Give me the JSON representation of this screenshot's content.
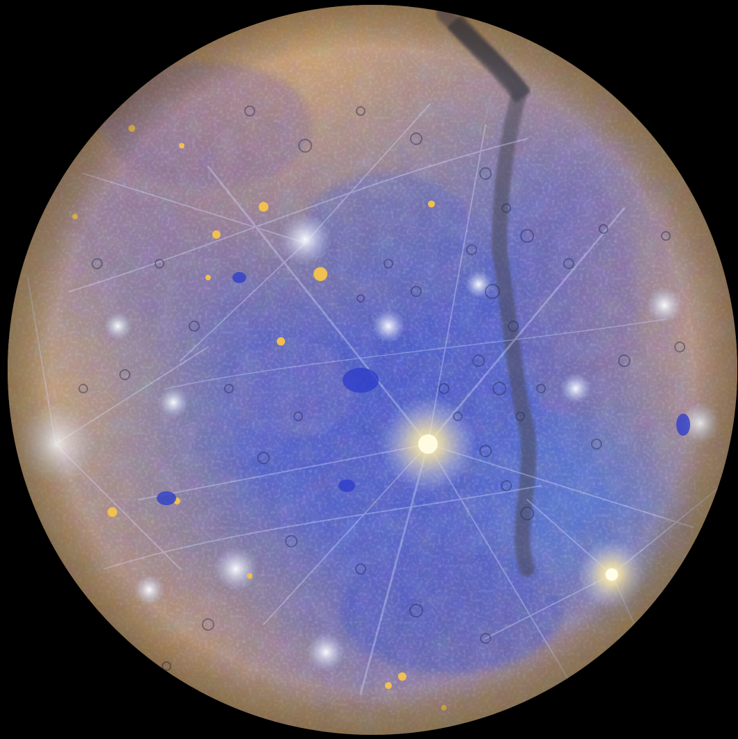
{
  "image": {
    "subject": "planet-mercury-enhanced-color",
    "background_color": "#000000",
    "palette": {
      "deep_blue": "#3a46b8",
      "mid_blue": "#5a6fd0",
      "pale_blue": "#9fb0e8",
      "violet": "#6e5fa8",
      "tan": "#b08a5a",
      "gold": "#e6b84a",
      "bright": "#fff3c8",
      "dark_streak": "#4b4a55"
    }
  }
}
